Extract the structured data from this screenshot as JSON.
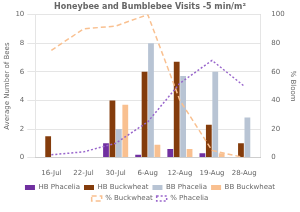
{
  "chart_data": {
    "type": "bar",
    "title": "Honeybee and Bumblebee Visits -5 min/m²",
    "categories": [
      "16-Jul",
      "22-Jul",
      "30-Jul",
      "6-Aug",
      "12-Aug",
      "19-Aug",
      "28-Aug"
    ],
    "series": [
      {
        "name": "HB Phacelia",
        "color": "#7030A0",
        "values": [
          0.0,
          0.0,
          1.0,
          0.2,
          0.6,
          0.3,
          0.0
        ]
      },
      {
        "name": "HB Buckwheat",
        "color": "#843C0C",
        "values": [
          1.5,
          0.0,
          4.0,
          6.0,
          6.7,
          2.3,
          1.0
        ]
      },
      {
        "name": "BB Phacelia",
        "color": "#B8C4D4",
        "values": [
          0.0,
          0.0,
          2.0,
          8.0,
          5.7,
          6.0,
          2.8
        ]
      },
      {
        "name": "BB Buckwheat",
        "color": "#F9C090",
        "values": [
          0.0,
          0.0,
          3.7,
          0.9,
          0.6,
          0.3,
          0.0
        ]
      },
      {
        "name": "% Buckwheat",
        "type": "line",
        "line_style": "dashed",
        "axis": "y2",
        "color": "#F9C090",
        "values": [
          75,
          90,
          92,
          100,
          40,
          5,
          0
        ]
      },
      {
        "name": "% Phacelia",
        "type": "line",
        "line_style": "dotted",
        "axis": "y2",
        "color": "#9966CC",
        "values": [
          2,
          4,
          10,
          25,
          52,
          68,
          50
        ]
      }
    ],
    "ylabel": "Average Number of Bees",
    "y2label": "% Bloom",
    "ylim": [
      0,
      10.0
    ],
    "yticks": [
      0.0,
      2.0,
      4.0,
      6.0,
      8.0,
      10.0
    ],
    "y2lim": [
      0,
      100
    ],
    "y2ticks": [
      0,
      20,
      40,
      60,
      80,
      100
    ],
    "grid": true,
    "legend": "bottom"
  }
}
